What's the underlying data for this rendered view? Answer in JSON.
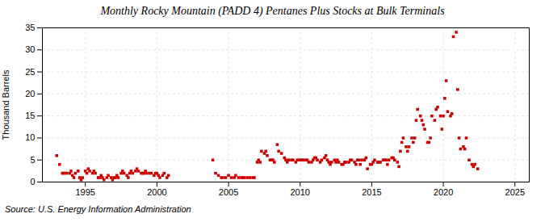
{
  "chart_data": {
    "type": "scatter",
    "title": "Monthly Rocky Mountain (PADD 4) Pentanes Plus Stocks at Bulk Terminals",
    "ylabel": "Thousand Barrels",
    "annotation": "Source: U.S. Energy Information Administration",
    "color": "#cc0000",
    "marker": "square",
    "grid": true,
    "xlim": [
      1992,
      2026
    ],
    "ylim": [
      0,
      35
    ],
    "xticks": [
      1995,
      2000,
      2005,
      2010,
      2015,
      2020,
      2025
    ],
    "yticks": [
      0,
      5,
      10,
      15,
      20,
      25,
      30,
      35
    ],
    "x": [
      1993.0,
      1993.2,
      1993.4,
      1993.5,
      1993.7,
      1993.9,
      1994.0,
      1994.1,
      1994.2,
      1994.3,
      1994.5,
      1994.6,
      1994.7,
      1994.8,
      1995.0,
      1995.1,
      1995.2,
      1995.3,
      1995.5,
      1995.6,
      1995.7,
      1995.9,
      1996.0,
      1996.1,
      1996.2,
      1996.3,
      1996.5,
      1996.6,
      1996.8,
      1996.9,
      1997.0,
      1997.1,
      1997.2,
      1997.3,
      1997.5,
      1997.6,
      1997.7,
      1997.9,
      1998.0,
      1998.1,
      1998.2,
      1998.3,
      1998.5,
      1998.6,
      1998.7,
      1998.9,
      1999.0,
      1999.1,
      1999.2,
      1999.3,
      1999.5,
      1999.6,
      1999.8,
      1999.9,
      2000.0,
      2000.1,
      2000.2,
      2000.4,
      2000.5,
      2000.7,
      2000.8,
      2003.9,
      2004.1,
      2004.3,
      2004.5,
      2004.6,
      2004.8,
      2005.0,
      2005.2,
      2005.4,
      2005.5,
      2005.7,
      2005.9,
      2006.0,
      2006.1,
      2006.3,
      2006.5,
      2006.7,
      2006.8,
      2007.0,
      2007.1,
      2007.2,
      2007.3,
      2007.5,
      2007.6,
      2007.7,
      2007.9,
      2008.0,
      2008.1,
      2008.2,
      2008.4,
      2008.5,
      2008.7,
      2008.9,
      2009.0,
      2009.1,
      2009.2,
      2009.4,
      2009.5,
      2009.7,
      2009.8,
      2010.0,
      2010.1,
      2010.2,
      2010.4,
      2010.5,
      2010.6,
      2010.8,
      2010.9,
      2011.0,
      2011.1,
      2011.2,
      2011.4,
      2011.5,
      2011.7,
      2011.8,
      2011.9,
      2012.0,
      2012.1,
      2012.2,
      2012.4,
      2012.5,
      2012.6,
      2012.7,
      2012.9,
      2013.0,
      2013.1,
      2013.2,
      2013.4,
      2013.5,
      2013.6,
      2013.8,
      2013.9,
      2014.0,
      2014.1,
      2014.2,
      2014.3,
      2014.5,
      2014.6,
      2014.7,
      2014.9,
      2015.0,
      2015.1,
      2015.2,
      2015.4,
      2015.5,
      2015.6,
      2015.8,
      2015.9,
      2016.0,
      2016.1,
      2016.2,
      2016.4,
      2016.5,
      2016.6,
      2016.8,
      2016.9,
      2017.0,
      2017.1,
      2017.2,
      2017.4,
      2017.5,
      2017.6,
      2017.8,
      2017.9,
      2018.0,
      2018.1,
      2018.2,
      2018.4,
      2018.5,
      2018.6,
      2018.7,
      2018.9,
      2019.0,
      2019.1,
      2019.2,
      2019.4,
      2019.5,
      2019.6,
      2019.8,
      2019.9,
      2020.0,
      2020.1,
      2020.2,
      2020.3,
      2020.5,
      2020.6,
      2020.7,
      2020.9,
      2021.0,
      2021.1,
      2021.2,
      2021.4,
      2021.5,
      2021.6,
      2021.8,
      2022.0,
      2022.1,
      2022.2,
      2022.4
    ],
    "values": [
      6.0,
      4.0,
      2.0,
      2.0,
      2.0,
      2.0,
      2.5,
      1.5,
      1.0,
      2.0,
      2.5,
      1.0,
      0.5,
      1.0,
      2.5,
      2.0,
      3.0,
      2.5,
      2.0,
      2.5,
      2.0,
      1.0,
      1.0,
      1.5,
      1.0,
      0.5,
      1.0,
      1.5,
      1.0,
      0.5,
      1.0,
      1.0,
      1.5,
      1.0,
      2.0,
      2.5,
      2.0,
      1.5,
      1.0,
      2.0,
      2.5,
      2.0,
      2.5,
      3.0,
      2.5,
      2.0,
      2.0,
      2.0,
      2.5,
      2.0,
      2.0,
      2.0,
      1.5,
      2.0,
      2.0,
      1.5,
      1.0,
      1.5,
      2.0,
      1.0,
      1.5,
      5.0,
      2.0,
      1.5,
      1.0,
      1.0,
      1.0,
      1.5,
      1.0,
      1.0,
      1.5,
      1.0,
      1.0,
      1.0,
      1.0,
      1.0,
      1.0,
      1.0,
      1.0,
      4.5,
      5.0,
      4.5,
      7.0,
      6.5,
      7.0,
      6.0,
      5.0,
      5.0,
      5.0,
      4.5,
      8.5,
      7.0,
      6.5,
      5.5,
      5.0,
      4.5,
      5.0,
      5.0,
      5.0,
      4.5,
      5.0,
      5.0,
      5.0,
      5.0,
      5.0,
      5.0,
      4.5,
      4.5,
      5.0,
      5.5,
      5.5,
      5.0,
      4.5,
      5.0,
      5.5,
      6.0,
      5.0,
      4.5,
      4.0,
      4.5,
      5.0,
      4.5,
      5.0,
      4.5,
      4.0,
      4.0,
      4.5,
      4.5,
      4.5,
      5.0,
      5.0,
      4.5,
      4.0,
      5.0,
      5.0,
      4.0,
      5.0,
      5.0,
      5.5,
      3.0,
      4.0,
      4.0,
      4.5,
      5.0,
      4.5,
      4.5,
      4.5,
      5.0,
      5.0,
      5.0,
      4.0,
      5.0,
      5.5,
      5.5,
      5.0,
      4.5,
      3.5,
      7.0,
      9.0,
      10.0,
      8.0,
      7.0,
      8.0,
      10.0,
      9.0,
      10.0,
      14.0,
      16.5,
      15.0,
      14.0,
      13.0,
      12.0,
      9.0,
      9.0,
      10.0,
      15.0,
      14.0,
      16.5,
      17.0,
      15.0,
      12.0,
      15.0,
      19.0,
      23.0,
      16.0,
      15.0,
      15.5,
      33.0,
      34.0,
      21.0,
      10.0,
      7.5,
      8.0,
      7.5,
      10.0,
      5.0,
      4.0,
      3.5,
      4.0,
      3.0
    ]
  }
}
